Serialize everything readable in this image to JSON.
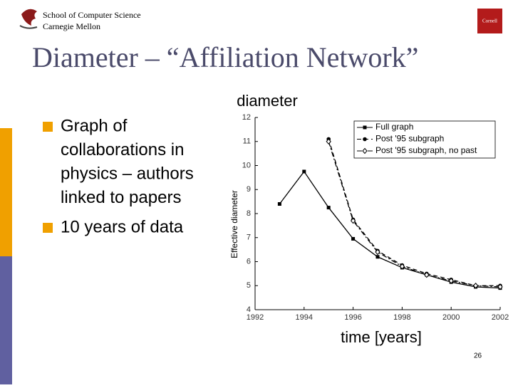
{
  "header": {
    "school": "School of Computer Science",
    "university": "Carnegie Mellon",
    "logo_right": "Cornell"
  },
  "title": "Diameter – “Affiliation Network”",
  "bullets": [
    [
      "Graph of",
      "collaborations in",
      "physics – authors",
      "linked to papers"
    ],
    [
      "10 years of data"
    ]
  ],
  "chart_data": {
    "type": "line",
    "annotations": [
      "diameter",
      "time [years]"
    ],
    "y_label": "Effective diameter",
    "x": [
      1993,
      1994,
      1995,
      1996,
      1997,
      1998,
      1999,
      2000,
      2001,
      2002
    ],
    "series": [
      {
        "name": "Full graph",
        "color": "#000000",
        "dash": "solid",
        "marker": "square",
        "values": [
          8.4,
          9.75,
          8.25,
          6.95,
          6.2,
          5.75,
          5.45,
          5.15,
          4.95,
          4.9
        ]
      },
      {
        "name": "Post '95 subgraph",
        "color": "#000000",
        "dash": "dashed",
        "marker": "circle",
        "values": [
          null,
          null,
          11.1,
          7.75,
          6.45,
          5.85,
          5.5,
          5.25,
          5.0,
          5.0
        ]
      },
      {
        "name": "Post '95 subgraph, no past",
        "color": "#000000",
        "dash": "dashdot",
        "marker": "diamond",
        "values": [
          null,
          null,
          11.0,
          7.7,
          6.4,
          5.8,
          5.45,
          5.2,
          5.0,
          4.95
        ]
      }
    ],
    "xlim": [
      1992,
      2002
    ],
    "xticks": [
      1992,
      1994,
      1996,
      1998,
      2000,
      2002
    ],
    "ylim": [
      4,
      12
    ],
    "yticks": [
      4,
      5,
      6,
      7,
      8,
      9,
      10,
      11,
      12
    ],
    "legend": "top-right"
  },
  "page_number": "26"
}
